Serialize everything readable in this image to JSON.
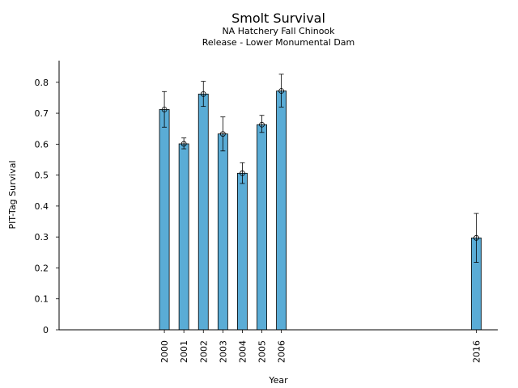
{
  "chart_data": {
    "type": "bar",
    "title": "Smolt Survival",
    "subtitle_lines": [
      "NA Hatchery Fall Chinook",
      "Release - Lower Monumental Dam"
    ],
    "xlabel": "Year",
    "ylabel": "PIT-Tag Survival",
    "ylim": [
      0,
      0.87
    ],
    "y_ticks": [
      "0",
      "0.1",
      "0.2",
      "0.3",
      "0.4",
      "0.5",
      "0.6",
      "0.7",
      "0.8"
    ],
    "x_axis_numeric_range": [
      1994.6,
      2017.1
    ],
    "bar_width_years": 0.5,
    "categories": [
      "2000",
      "2001",
      "2002",
      "2003",
      "2004",
      "2005",
      "2006",
      "2016"
    ],
    "values": [
      0.712,
      0.601,
      0.762,
      0.633,
      0.506,
      0.663,
      0.772,
      0.297
    ],
    "error_low": [
      0.655,
      0.585,
      0.722,
      0.578,
      0.473,
      0.638,
      0.72,
      0.218
    ],
    "error_high": [
      0.77,
      0.62,
      0.803,
      0.688,
      0.54,
      0.693,
      0.826,
      0.376
    ],
    "grid": false,
    "bar_color": "#5aacd6",
    "edge_color": "#000000"
  }
}
